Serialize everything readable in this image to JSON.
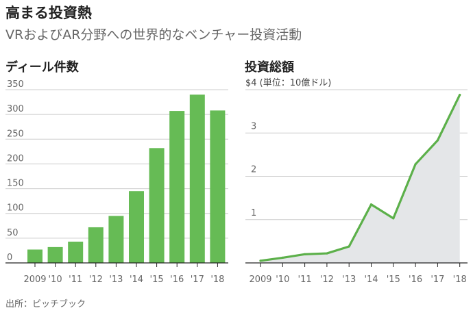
{
  "title": "高まる投資熱",
  "subtitle": "VRおよびAR分野への世界的なベンチャー投資活動",
  "source": "出所：ピッチブック",
  "colors": {
    "bar": "#66bb55",
    "line": "#5cb04a",
    "area": "#e4e6e8",
    "grid": "#cccccc",
    "axis": "#222222"
  },
  "chart_data": [
    {
      "type": "bar",
      "title": "ディール件数",
      "categories": [
        "2009",
        "'10",
        "'11",
        "'12",
        "'13",
        "'14",
        "'15",
        "'16",
        "'17",
        "'18"
      ],
      "values": [
        27,
        32,
        43,
        72,
        95,
        145,
        232,
        307,
        340,
        308
      ],
      "ylim": [
        0,
        350
      ],
      "yticks": [
        "0",
        "50",
        "100",
        "150",
        "200",
        "250",
        "300",
        "350"
      ],
      "grid": true
    },
    {
      "type": "area",
      "title": "投資総額",
      "unit_label": "$4 (単位：10億ドル)",
      "categories": [
        "2009",
        "'10",
        "'11",
        "'12",
        "'13",
        "'14",
        "'15",
        "'16",
        "'17",
        "'18"
      ],
      "values": [
        0.05,
        0.12,
        0.2,
        0.22,
        0.38,
        1.35,
        1.03,
        2.28,
        2.83,
        3.88
      ],
      "ylim": [
        0,
        4
      ],
      "yticks": [
        "1",
        "2",
        "3"
      ],
      "grid": true
    }
  ]
}
